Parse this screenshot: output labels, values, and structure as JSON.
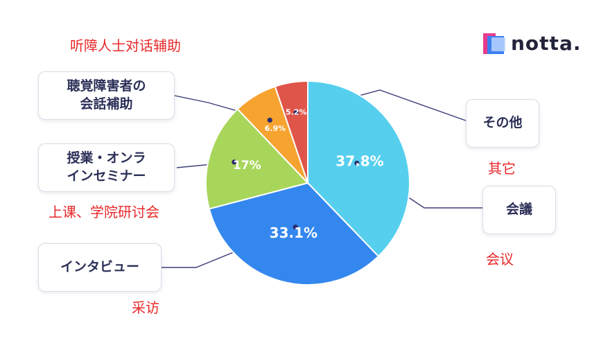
{
  "logo": {
    "text": "notta."
  },
  "notes": {
    "title_cn": "听障人士对话辅助",
    "seminar_cn": "上课、学院研讨会",
    "interview_cn": "采访",
    "other_cn": "其它",
    "meeting_cn": "会议"
  },
  "boxes": {
    "hearing": "聴覚障害者の\n会話補助",
    "seminar": "授業・オンラ\nインセミナー",
    "interview": "インタビュー",
    "other": "その他",
    "meeting": "会議"
  },
  "chart_data": {
    "type": "pie",
    "categories": [
      "会議",
      "インタビュー",
      "授業・オンラインセミナー",
      "聴覚障害者の会話補助",
      "その他"
    ],
    "values": [
      37.8,
      33.1,
      17,
      6.9,
      5.2
    ],
    "labels": [
      "37.8%",
      "33.1%",
      "17%",
      "6.9%",
      "5.2%"
    ],
    "colors": [
      "#56cfee",
      "#3487ee",
      "#a8d65b",
      "#f6a330",
      "#e05549"
    ]
  }
}
